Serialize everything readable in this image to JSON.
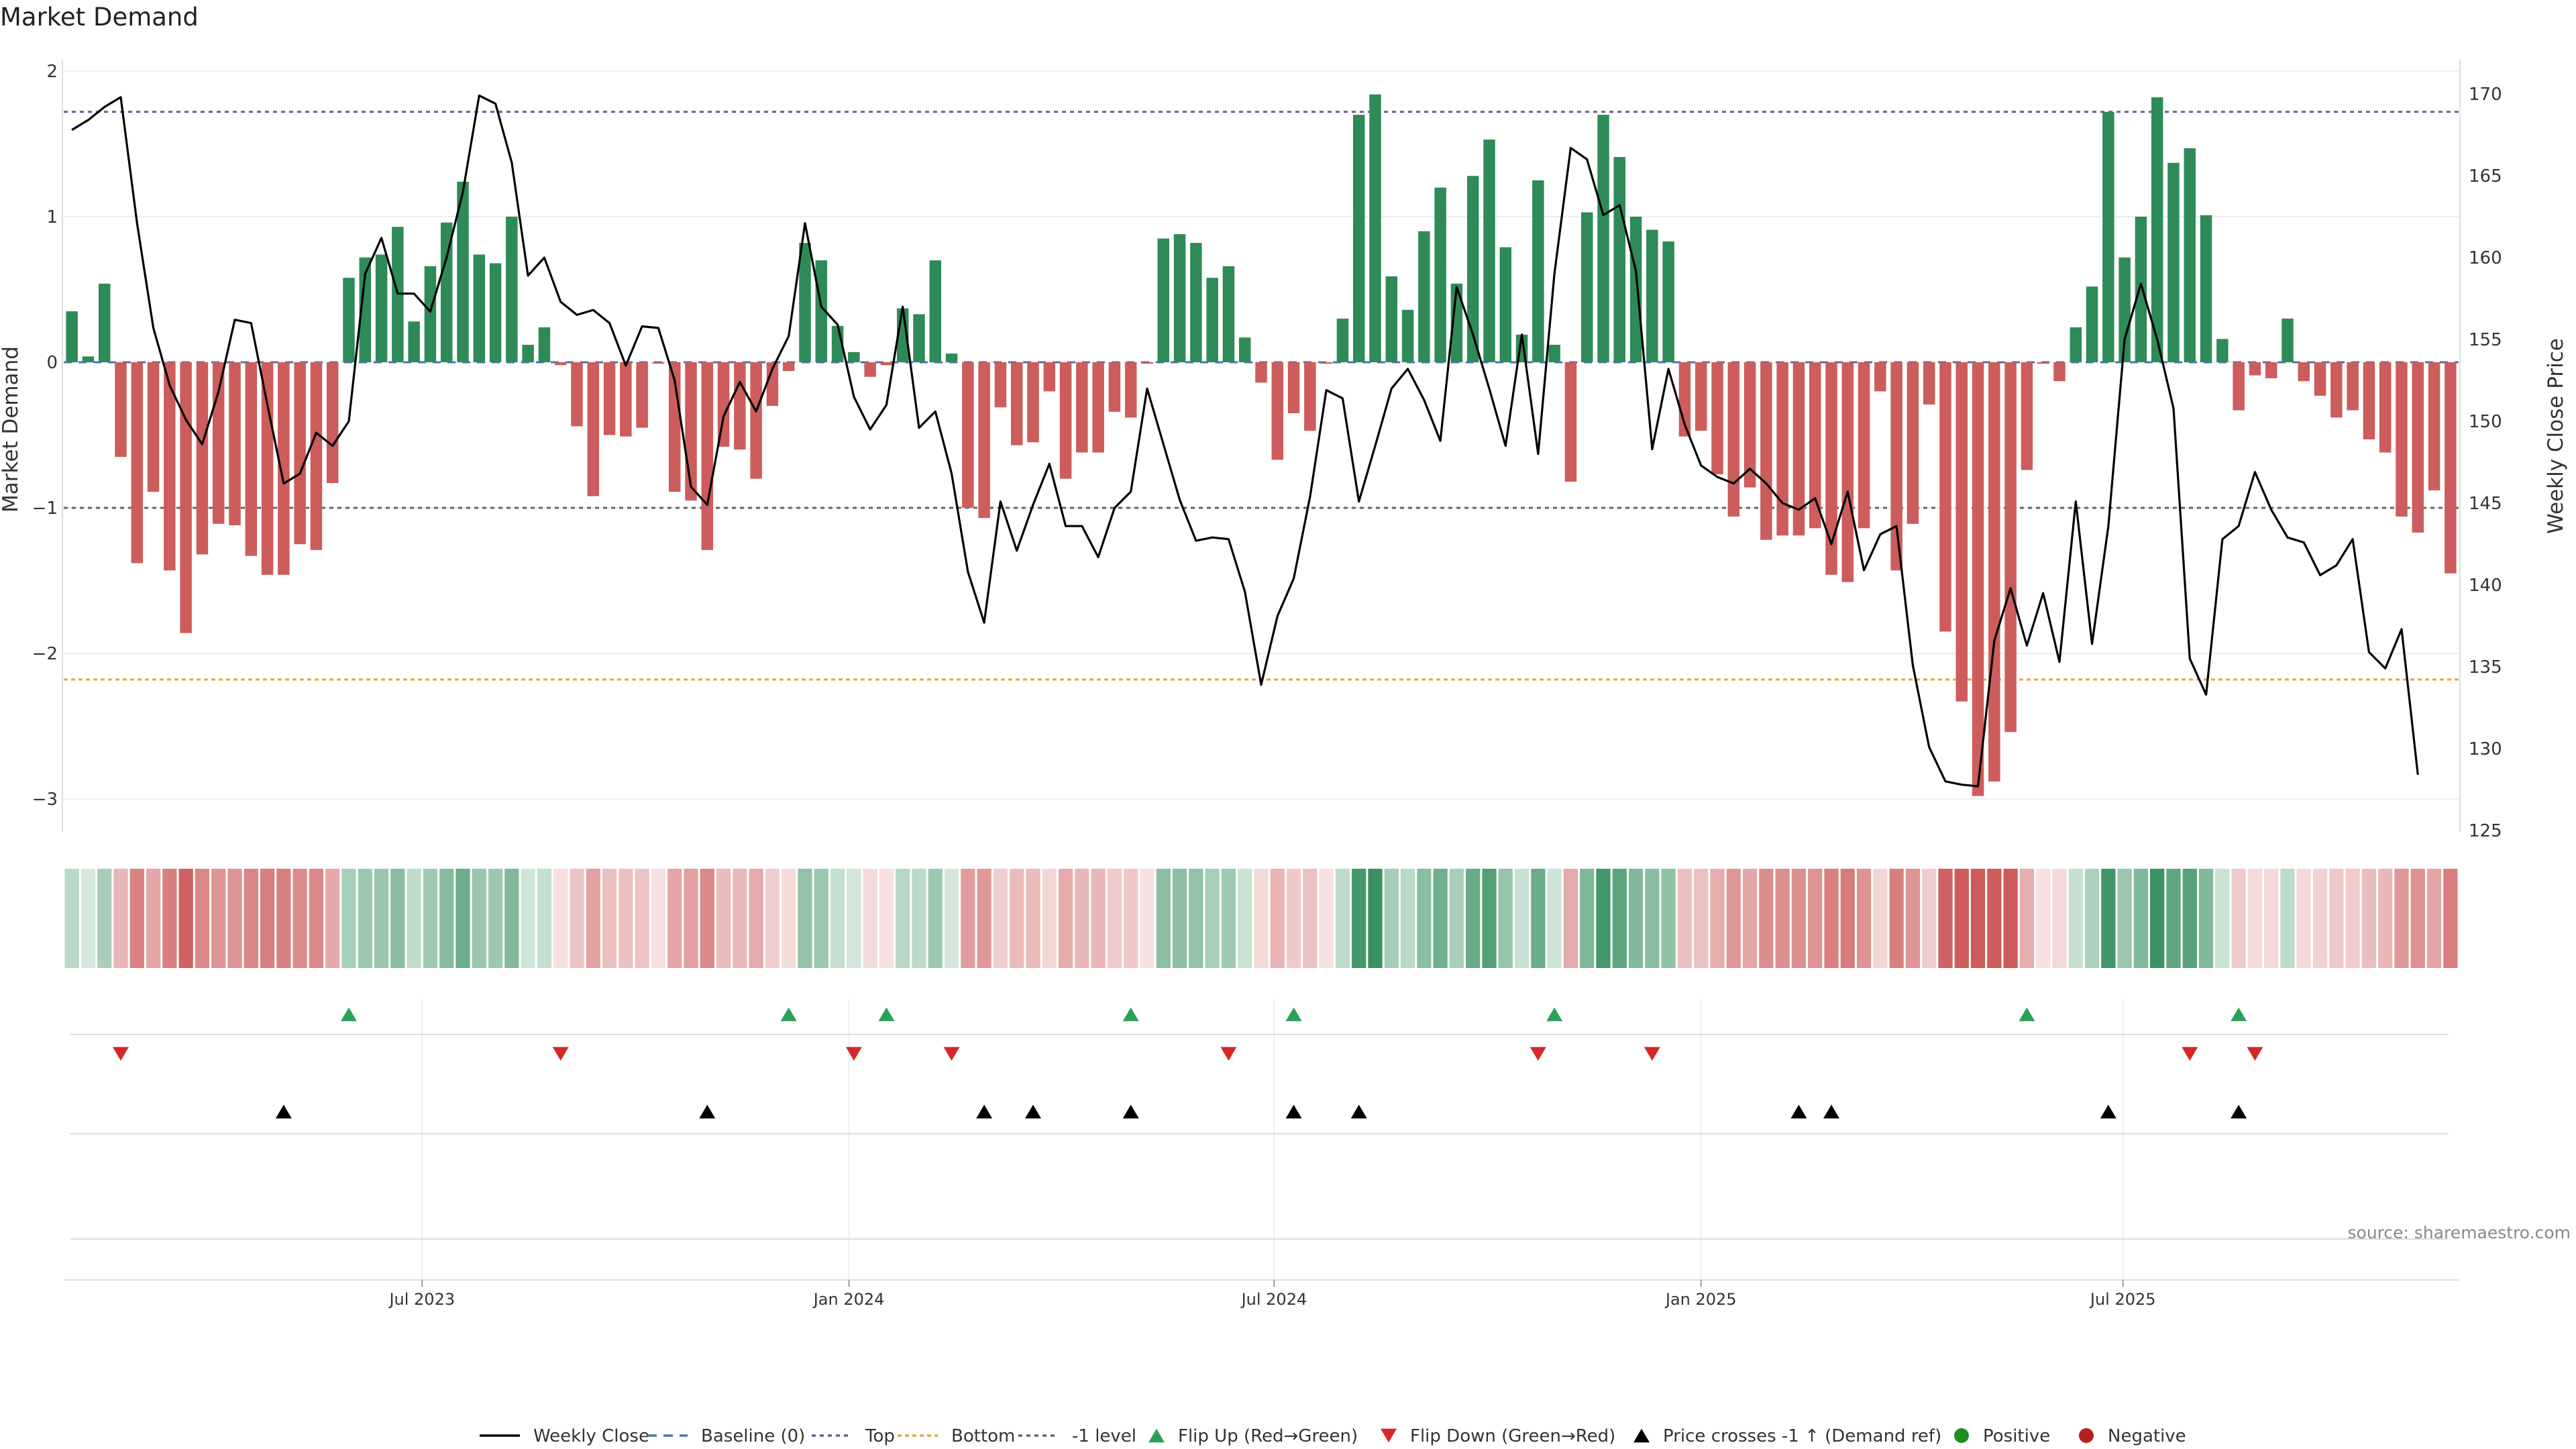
{
  "chart_data": {
    "type": "bar+line",
    "title": "Market Demand",
    "ylabel_left": "Market Demand",
    "ylabel_right": "Weekly Close Price",
    "ylim_left": [
      -3.25,
      2.0
    ],
    "ylim_right": [
      125,
      170
    ],
    "yticks_left": [
      {
        "v": 2,
        "label": "2"
      },
      {
        "v": 1,
        "label": "1"
      },
      {
        "v": 0,
        "label": "0"
      },
      {
        "v": -1,
        "label": "−1"
      },
      {
        "v": -2,
        "label": "−2"
      },
      {
        "v": -3,
        "label": "−3"
      }
    ],
    "yticks_right": [
      {
        "v": 170,
        "label": "170"
      },
      {
        "v": 165,
        "label": "165"
      },
      {
        "v": 160,
        "label": "160"
      },
      {
        "v": 155,
        "label": "155"
      },
      {
        "v": 150,
        "label": "150"
      },
      {
        "v": 145,
        "label": "145"
      },
      {
        "v": 140,
        "label": "140"
      },
      {
        "v": 135,
        "label": "135"
      },
      {
        "v": 130,
        "label": "130"
      },
      {
        "v": 125,
        "label": "125"
      }
    ],
    "xticks": [
      {
        "week": 21.5,
        "label": "Jul 2023"
      },
      {
        "week": 47.7,
        "label": "Jan 2024"
      },
      {
        "week": 73.8,
        "label": "Jul 2024"
      },
      {
        "week": 100.0,
        "label": "Jan 2025"
      },
      {
        "week": 125.9,
        "label": "Jul 2025"
      }
    ],
    "reference_lines": {
      "top": 1.72,
      "bottom": -2.18,
      "minus_one": -1.0,
      "baseline": 0
    },
    "demand": [
      0.35,
      0.04,
      0.54,
      -0.65,
      -1.38,
      -0.89,
      -1.43,
      -1.86,
      -1.32,
      -1.11,
      -1.12,
      -1.33,
      -1.46,
      -1.46,
      -1.25,
      -1.29,
      -0.83,
      0.58,
      0.72,
      0.74,
      0.93,
      0.28,
      0.66,
      0.96,
      1.24,
      0.74,
      0.68,
      1.0,
      0.12,
      0.24,
      -0.02,
      -0.44,
      -0.92,
      -0.5,
      -0.51,
      -0.45,
      -0.01,
      -0.89,
      -0.95,
      -1.29,
      -0.58,
      -0.6,
      -0.8,
      -0.3,
      -0.06,
      0.82,
      0.7,
      0.25,
      0.07,
      -0.1,
      -0.02,
      0.37,
      0.33,
      0.7,
      0.06,
      -1.0,
      -1.07,
      -0.31,
      -0.57,
      -0.55,
      -0.2,
      -0.8,
      -0.62,
      -0.62,
      -0.34,
      -0.38,
      -0.01,
      0.85,
      0.88,
      0.82,
      0.58,
      0.66,
      0.17,
      -0.14,
      -0.67,
      -0.35,
      -0.47,
      -0.01,
      0.3,
      1.7,
      1.84,
      0.59,
      0.36,
      0.9,
      1.2,
      0.54,
      1.28,
      1.53,
      0.79,
      0.19,
      1.25,
      0.12,
      -0.82,
      1.03,
      1.7,
      1.41,
      1.0,
      0.91,
      0.83,
      -0.51,
      -0.47,
      -0.77,
      -1.06,
      -0.86,
      -1.22,
      -1.19,
      -1.19,
      -1.14,
      -1.46,
      -1.51,
      -1.14,
      -0.2,
      -1.43,
      -1.11,
      -0.29,
      -1.85,
      -2.33,
      -2.98,
      -2.88,
      -2.54,
      -0.74,
      -0.01,
      -0.13,
      0.24,
      0.52,
      1.72,
      0.72,
      1.0,
      1.82,
      1.37,
      1.47,
      1.01,
      0.16,
      -0.33,
      -0.09,
      -0.11,
      0.3,
      -0.13,
      -0.23,
      -0.38,
      -0.33,
      -0.53,
      -0.62,
      -1.06,
      -1.17,
      -0.88,
      -1.45
    ],
    "weekly_close": [
      167.8,
      168.4,
      169.2,
      169.8,
      162.1,
      155.7,
      152.2,
      150.1,
      148.6,
      151.8,
      156.2,
      156.0,
      151.0,
      146.2,
      146.8,
      149.3,
      148.5,
      150.0,
      159.0,
      161.2,
      157.8,
      157.8,
      156.7,
      160.0,
      164.0,
      169.9,
      169.4,
      165.8,
      158.9,
      160.0,
      157.3,
      156.5,
      156.8,
      156.0,
      153.4,
      155.8,
      155.7,
      152.5,
      146.0,
      144.9,
      150.3,
      152.4,
      150.6,
      153.2,
      155.2,
      162.1,
      157.0,
      155.9,
      151.5,
      149.5,
      151.0,
      157.0,
      149.6,
      150.6,
      146.8,
      140.8,
      137.7,
      145.1,
      142.1,
      144.9,
      147.4,
      143.6,
      143.6,
      141.7,
      144.7,
      145.7,
      152.0,
      148.6,
      145.2,
      142.7,
      142.9,
      142.8,
      139.6,
      133.9,
      138.1,
      140.4,
      145.4,
      151.9,
      151.4,
      145.1,
      148.5,
      152.0,
      153.2,
      151.3,
      148.8,
      158.2,
      155.3,
      152.0,
      148.5,
      155.3,
      148.0,
      159.0,
      166.7,
      166.0,
      162.6,
      163.2,
      159.2,
      148.3,
      153.2,
      149.8,
      147.3,
      146.6,
      146.2,
      147.1,
      146.2,
      145.0,
      144.6,
      145.3,
      142.5,
      145.7,
      140.9,
      143.1,
      143.6,
      135.1,
      130.1,
      128.0,
      127.8,
      127.7,
      136.6,
      139.8,
      136.3,
      139.5,
      135.3,
      145.1,
      136.4,
      143.6,
      155.0,
      158.4,
      155.0,
      150.8,
      135.5,
      133.3,
      142.8,
      143.6,
      146.9,
      144.6,
      142.9,
      142.6,
      140.6,
      141.2,
      142.8,
      135.9,
      134.9,
      137.3,
      128.4
    ],
    "flip_up_weeks": [
      17,
      44,
      50,
      65,
      75,
      91,
      120,
      133
    ],
    "flip_down_weeks": [
      3,
      30,
      48,
      54,
      71,
      90,
      97,
      130,
      134
    ],
    "price_cross_weeks": [
      13,
      39,
      56,
      59,
      65,
      75,
      79,
      106,
      108,
      125,
      133
    ],
    "legend": [
      "Weekly Close",
      "Baseline (0)",
      "Top",
      "Bottom",
      "-1 level",
      "Flip Up (Red→Green)",
      "Flip Down (Green→Red)",
      "Price crosses -1 ↑ (Demand ref)",
      "Positive",
      "Negative"
    ]
  },
  "colors": {
    "positive": "#2e8b57",
    "negative": "#cd5c5c",
    "line": "#000000",
    "top": "#6b5b95",
    "bottom": "#e8a33d",
    "minus_one": "#666666",
    "baseline": "#4c72b0",
    "flip_up": "#2ca05a",
    "flip_down": "#d62728",
    "cross": "#000000",
    "positive_dot": "#228b22",
    "negative_dot": "#b22222"
  },
  "source": "source: sharemaestro.com"
}
